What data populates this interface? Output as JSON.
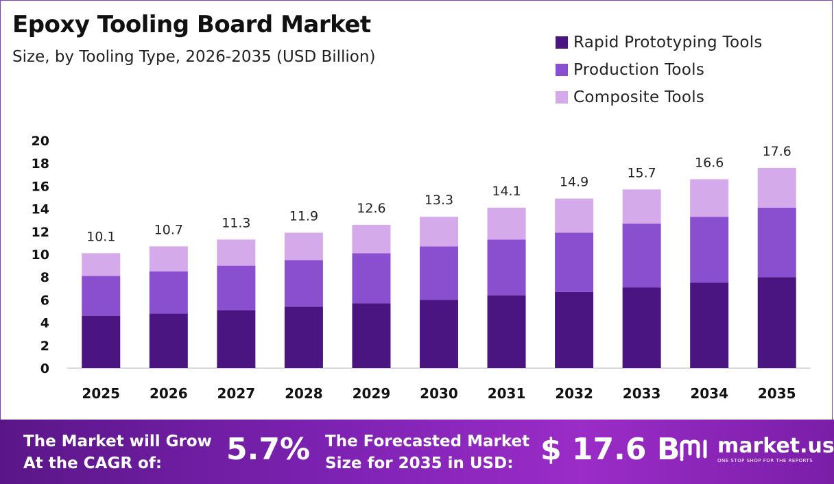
{
  "header": {
    "title": "Epoxy Tooling Board Market",
    "subtitle": "Size, by Tooling Type, 2026-2035 (USD Billion)"
  },
  "colors": {
    "rapid": "#4a1580",
    "production": "#8a4fcf",
    "composite": "#d4aaea",
    "frame": "#7b3fc4"
  },
  "chart_data": {
    "type": "bar",
    "stacked": true,
    "categories": [
      "2025",
      "2026",
      "2027",
      "2028",
      "2029",
      "2030",
      "2031",
      "2032",
      "2033",
      "2034",
      "2035"
    ],
    "series": [
      {
        "name": "Rapid Prototyping Tools",
        "values": [
          4.6,
          4.8,
          5.1,
          5.4,
          5.7,
          6.0,
          6.4,
          6.7,
          7.1,
          7.5,
          8.0
        ]
      },
      {
        "name": "Production Tools",
        "values": [
          3.5,
          3.7,
          3.9,
          4.1,
          4.4,
          4.7,
          4.9,
          5.2,
          5.6,
          5.8,
          6.1
        ]
      },
      {
        "name": "Composite Tools",
        "values": [
          2.0,
          2.2,
          2.3,
          2.4,
          2.5,
          2.6,
          2.8,
          3.0,
          3.0,
          3.3,
          3.5
        ]
      }
    ],
    "totals": [
      "10.1",
      "10.7",
      "11.3",
      "11.9",
      "12.6",
      "13.3",
      "14.1",
      "14.9",
      "15.7",
      "16.6",
      "17.6"
    ],
    "yticks": [
      0,
      2,
      4,
      6,
      8,
      10,
      12,
      14,
      16,
      18,
      20
    ],
    "ylim": [
      0,
      20
    ],
    "grid": false,
    "legend_position": "top-right"
  },
  "footer": {
    "cagr_label_line1": "The Market will Grow",
    "cagr_label_line2": "At the CAGR of:",
    "cagr_value": "5.7%",
    "forecast_label_line1": "The Forecasted Market",
    "forecast_label_line2": "Size for 2035 in USD:",
    "forecast_value": "$ 17.6 B",
    "brand_name": "market.us",
    "brand_tagline": "ONE STOP SHOP FOR THE REPORTS",
    "brand_icon": "market-us-logo-icon"
  }
}
